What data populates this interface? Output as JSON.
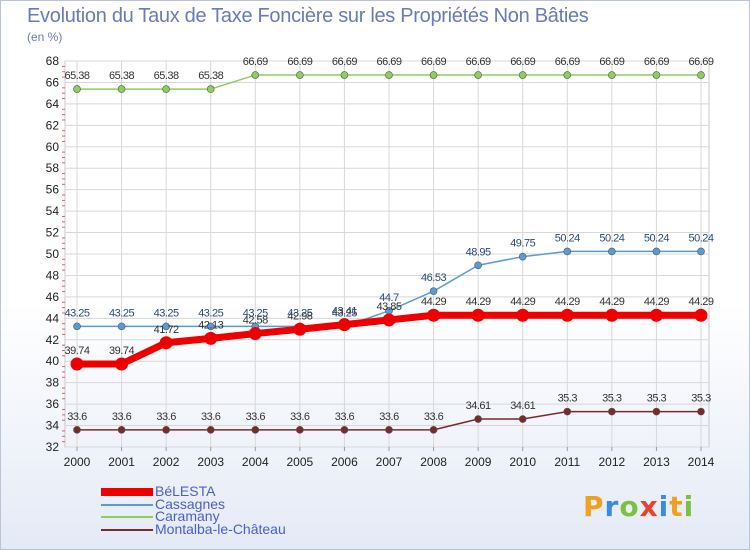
{
  "title": "Evolution du Taux de Taxe Foncière sur les Propriétés Non Bâties",
  "subtitle": "(en %)",
  "logo": {
    "text": "Proxiti",
    "letters": [
      {
        "ch": "P",
        "color": "#f0a020"
      },
      {
        "ch": "r",
        "color": "#3a8be0"
      },
      {
        "ch": "o",
        "color": "#7ac143"
      },
      {
        "ch": "x",
        "color": "#e8432b"
      },
      {
        "ch": "i",
        "color": "#3a8be0"
      },
      {
        "ch": "t",
        "color": "#f0a020"
      },
      {
        "ch": "i",
        "color": "#7ac143"
      }
    ]
  },
  "chart_data": {
    "type": "line",
    "title": "Evolution du Taux de Taxe Foncière sur les Propriétés Non Bâties",
    "ylabel": "(en %)",
    "xlabel": "",
    "ylim": [
      32,
      68
    ],
    "yticks": [
      32,
      34,
      36,
      38,
      40,
      42,
      44,
      46,
      48,
      50,
      52,
      54,
      56,
      58,
      60,
      62,
      64,
      66,
      68
    ],
    "categories": [
      "2000",
      "2001",
      "2002",
      "2003",
      "2004",
      "2005",
      "2006",
      "2007",
      "2008",
      "2009",
      "2010",
      "2011",
      "2012",
      "2013",
      "2014"
    ],
    "grid": true,
    "legend_position": "bottom-left",
    "series": [
      {
        "name": "BéLESTA",
        "color": "#ee0000",
        "values": [
          39.74,
          39.74,
          41.72,
          42.13,
          42.58,
          42.98,
          43.41,
          43.85,
          44.29,
          44.29,
          44.29,
          44.29,
          44.29,
          44.29,
          44.29
        ],
        "labels": [
          "39.74",
          "39.74",
          "41.72",
          "42.13",
          "42.58",
          "42.98",
          "43.41",
          "43.85",
          "44.29",
          "44.29",
          "44.29",
          "44.29",
          "44.29",
          "44.29",
          "44.29"
        ]
      },
      {
        "name": "Cassagnes",
        "color": "#5b9bd5",
        "values": [
          43.25,
          43.25,
          43.25,
          43.25,
          43.25,
          43.25,
          43.25,
          44.7,
          46.53,
          48.95,
          49.75,
          50.24,
          50.24,
          50.24,
          50.24
        ],
        "labels": [
          "43.25",
          "43.25",
          "43.25",
          "43.25",
          "43.25",
          "43.25",
          "43.25",
          "44.7",
          "46.53",
          "48.95",
          "49.75",
          "50.24",
          "50.24",
          "50.24",
          "50.24"
        ]
      },
      {
        "name": "Caramany",
        "color": "#8ccf5a",
        "values": [
          65.38,
          65.38,
          65.38,
          65.38,
          66.69,
          66.69,
          66.69,
          66.69,
          66.69,
          66.69,
          66.69,
          66.69,
          66.69,
          66.69,
          66.69
        ],
        "labels": [
          "65.38",
          "65.38",
          "65.38",
          "65.38",
          "66.69",
          "66.69",
          "66.69",
          "66.69",
          "66.69",
          "66.69",
          "66.69",
          "66.69",
          "66.69",
          "66.69",
          "66.69"
        ]
      },
      {
        "name": "Montalba-le-Château",
        "color": "#7a2a2a",
        "values": [
          33.6,
          33.6,
          33.6,
          33.6,
          33.6,
          33.6,
          33.6,
          33.6,
          33.6,
          34.61,
          34.61,
          35.3,
          35.3,
          35.3,
          35.3
        ],
        "labels": [
          "33.6",
          "33.6",
          "33.6",
          "33.6",
          "33.6",
          "33.6",
          "33.6",
          "33.6",
          "33.6",
          "34.61",
          "34.61",
          "35.3",
          "35.3",
          "35.3",
          "35.3"
        ]
      }
    ]
  }
}
